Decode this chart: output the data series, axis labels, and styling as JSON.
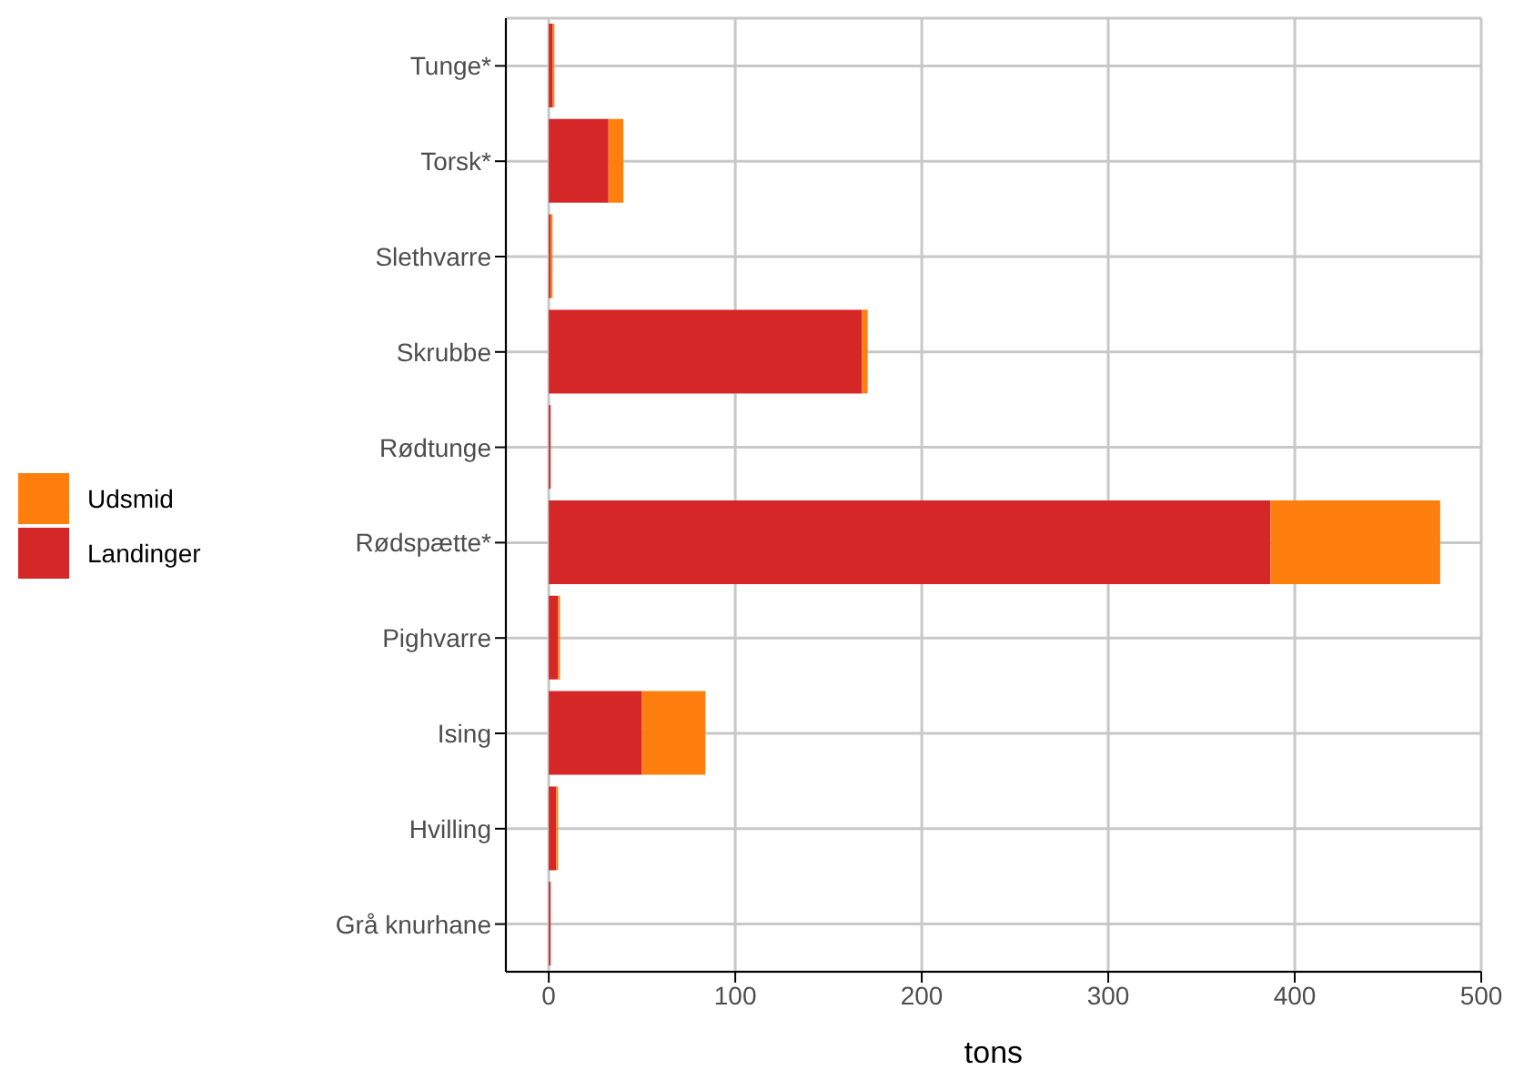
{
  "chart_data": {
    "type": "bar",
    "orientation": "horizontal",
    "stacked": true,
    "categories": [
      "Tunge*",
      "Torsk*",
      "Slethvarre",
      "Skrubbe",
      "Rødtunge",
      "Rødspætte*",
      "Pighvarre",
      "Ising",
      "Hvilling",
      "Grå knurhane"
    ],
    "series": [
      {
        "name": "Landinger",
        "color": "#d62728",
        "values": [
          2,
          32,
          1,
          168,
          1,
          387,
          5,
          50,
          4,
          1
        ]
      },
      {
        "name": "Udsmid",
        "color": "#ff7f0e",
        "values": [
          1,
          8,
          1,
          3,
          0,
          91,
          1,
          34,
          1,
          0
        ]
      }
    ],
    "xlabel": "tons",
    "xlim": [
      -23,
      500
    ],
    "xticks": [
      0,
      100,
      200,
      300,
      400,
      500
    ],
    "grid": true,
    "legend": "left"
  }
}
